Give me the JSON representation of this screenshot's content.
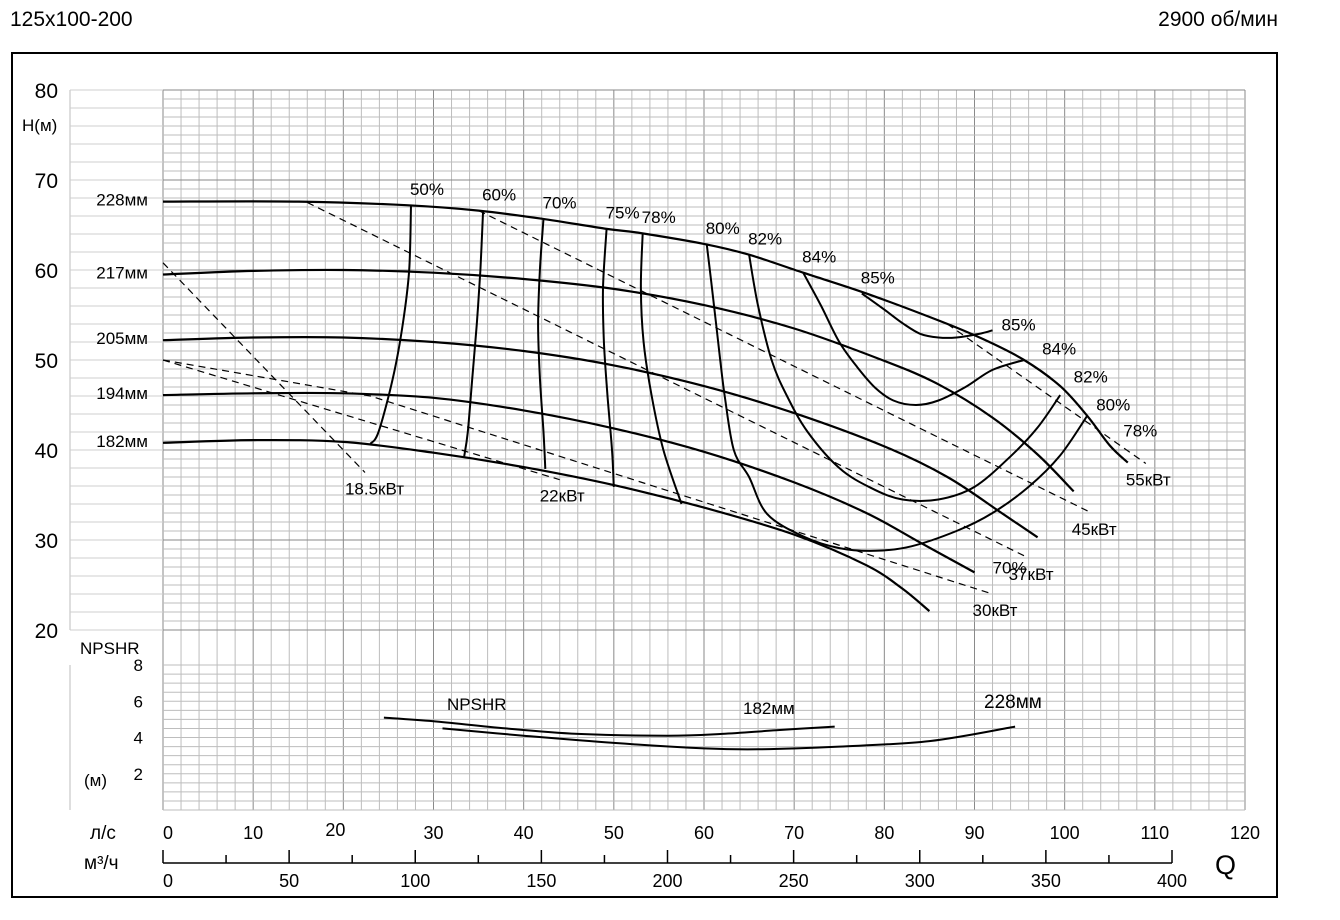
{
  "header": {
    "model": "125x100-200",
    "speed": "2900 об/мин"
  },
  "chart_data": {
    "type": "line",
    "title": "",
    "xlabel": "Q",
    "ylabel": "H(м)",
    "x_unit_ls": "л/с",
    "x_unit_m3h": "м³/ч",
    "xlim": [
      0,
      120
    ],
    "ylim": [
      20,
      80
    ],
    "grid": true,
    "x_ticks_ls": [
      0,
      10,
      20,
      30,
      40,
      50,
      60,
      70,
      80,
      90,
      100,
      110,
      120
    ],
    "x_ticks_m3h": [
      0,
      50,
      100,
      150,
      200,
      250,
      300,
      350,
      400
    ],
    "y_ticks": [
      20,
      30,
      40,
      50,
      60,
      70,
      80
    ],
    "head_curves": [
      {
        "name": "228мм",
        "points": [
          [
            0,
            67.6
          ],
          [
            15,
            67.6
          ],
          [
            27,
            67.2
          ],
          [
            35,
            66.6
          ],
          [
            42,
            65.7
          ],
          [
            49,
            64.6
          ],
          [
            53,
            64.1
          ],
          [
            60,
            62.9
          ],
          [
            65,
            61.7
          ],
          [
            71,
            59.7
          ],
          [
            78,
            57.4
          ],
          [
            86,
            54.4
          ],
          [
            91,
            52.3
          ],
          [
            95.5,
            50.0
          ],
          [
            99.5,
            47.1
          ],
          [
            102.5,
            43.8
          ],
          [
            105,
            40.5
          ],
          [
            107,
            38.6
          ]
        ]
      },
      {
        "name": "217мм",
        "points": [
          [
            0,
            59.5
          ],
          [
            10,
            59.9
          ],
          [
            20,
            60.0
          ],
          [
            30,
            59.7
          ],
          [
            40,
            59.0
          ],
          [
            50,
            57.9
          ],
          [
            60,
            56.1
          ],
          [
            70,
            53.5
          ],
          [
            80,
            49.9
          ],
          [
            86,
            47.3
          ],
          [
            92,
            43.6
          ],
          [
            97,
            39.5
          ],
          [
            101,
            35.4
          ]
        ]
      },
      {
        "name": "205мм",
        "points": [
          [
            0,
            52.2
          ],
          [
            10,
            52.5
          ],
          [
            20,
            52.5
          ],
          [
            30,
            52.0
          ],
          [
            40,
            51.0
          ],
          [
            50,
            49.4
          ],
          [
            60,
            47.1
          ],
          [
            70,
            44.1
          ],
          [
            80,
            40.4
          ],
          [
            87,
            37.0
          ],
          [
            93,
            33.0
          ],
          [
            97,
            30.3
          ]
        ]
      },
      {
        "name": "194мм",
        "points": [
          [
            0,
            46.1
          ],
          [
            10,
            46.3
          ],
          [
            20,
            46.3
          ],
          [
            30,
            45.8
          ],
          [
            40,
            44.4
          ],
          [
            50,
            42.4
          ],
          [
            60,
            39.8
          ],
          [
            70,
            36.4
          ],
          [
            78,
            33.0
          ],
          [
            84,
            29.7
          ],
          [
            90,
            26.4
          ]
        ]
      },
      {
        "name": "182мм",
        "points": [
          [
            0,
            40.8
          ],
          [
            10,
            41.1
          ],
          [
            20,
            40.9
          ],
          [
            30,
            39.7
          ],
          [
            40,
            38.1
          ],
          [
            50,
            36.1
          ],
          [
            60,
            33.6
          ],
          [
            70,
            30.6
          ],
          [
            78,
            27.2
          ],
          [
            82,
            24.6
          ],
          [
            85,
            22.1
          ]
        ]
      }
    ],
    "efficiency_lines": [
      {
        "label": "50%",
        "points": [
          [
            27.5,
            67.2
          ],
          [
            27.3,
            60.0
          ],
          [
            26.6,
            54.0
          ],
          [
            25.5,
            48.0
          ],
          [
            23.9,
            42.0
          ],
          [
            23.0,
            40.7
          ]
        ]
      },
      {
        "label": "60%",
        "points": [
          [
            35.5,
            66.6
          ],
          [
            35.2,
            60.0
          ],
          [
            34.8,
            54.0
          ],
          [
            34.3,
            48.0
          ],
          [
            33.8,
            42.0
          ],
          [
            33.4,
            39.3
          ]
        ]
      },
      {
        "label": "70%",
        "points": [
          [
            42.2,
            65.7
          ],
          [
            41.8,
            60.0
          ],
          [
            41.6,
            54.0
          ],
          [
            41.8,
            48.0
          ],
          [
            42.2,
            42.0
          ],
          [
            42.4,
            37.9
          ]
        ]
      },
      {
        "label": "75%",
        "points": [
          [
            49.2,
            64.6
          ],
          [
            48.8,
            58.0
          ],
          [
            48.9,
            52.0
          ],
          [
            49.3,
            46.0
          ],
          [
            49.8,
            40.0
          ],
          [
            50.0,
            35.9
          ]
        ]
      },
      {
        "label": "78%",
        "points": [
          [
            53.2,
            64.1
          ],
          [
            53.0,
            58.0
          ],
          [
            53.3,
            52.0
          ],
          [
            54.2,
            46.0
          ],
          [
            55.5,
            40.0
          ],
          [
            57.5,
            34.0
          ]
        ]
      },
      {
        "label": "80%",
        "points": [
          [
            60.3,
            62.9
          ],
          [
            61.0,
            57.0
          ],
          [
            61.8,
            50.0
          ],
          [
            62.3,
            46.0
          ],
          [
            63.3,
            40.0
          ],
          [
            65.0,
            37.0
          ],
          [
            67.0,
            32.9
          ],
          [
            71.0,
            30.4
          ],
          [
            75.0,
            29.1
          ],
          [
            79.0,
            28.8
          ],
          [
            83.0,
            29.3
          ],
          [
            88.0,
            31.0
          ],
          [
            92.0,
            33.0
          ],
          [
            96.0,
            35.9
          ],
          [
            99.5,
            39.4
          ],
          [
            102.5,
            43.8
          ]
        ]
      },
      {
        "label": "82%",
        "points": [
          [
            65.0,
            61.7
          ],
          [
            66.0,
            56.0
          ],
          [
            67.5,
            50.0
          ],
          [
            69.2,
            46.0
          ],
          [
            71.5,
            42.0
          ],
          [
            75.0,
            38.0
          ],
          [
            78.5,
            35.8
          ],
          [
            82.0,
            34.5
          ],
          [
            86.0,
            34.5
          ],
          [
            90.0,
            35.9
          ],
          [
            94.0,
            39.3
          ],
          [
            97.0,
            42.5
          ],
          [
            99.5,
            46.1
          ]
        ]
      },
      {
        "label": "84%",
        "points": [
          [
            71.0,
            59.7
          ],
          [
            73.0,
            56.0
          ],
          [
            75.0,
            52.0
          ],
          [
            77.0,
            49.2
          ],
          [
            79.0,
            46.9
          ],
          [
            81.0,
            45.5
          ],
          [
            83.5,
            45.0
          ],
          [
            86.0,
            45.5
          ],
          [
            89.0,
            47.0
          ],
          [
            92.0,
            48.9
          ],
          [
            95.5,
            50.0
          ]
        ]
      },
      {
        "label": "85%",
        "points": [
          [
            77.5,
            57.4
          ],
          [
            80.0,
            55.6
          ],
          [
            82.0,
            54.1
          ],
          [
            84.0,
            52.9
          ],
          [
            86.0,
            52.5
          ],
          [
            88.0,
            52.5
          ],
          [
            90.5,
            52.9
          ],
          [
            92.0,
            53.3
          ]
        ]
      }
    ],
    "power_lines": [
      {
        "label": "18.5кВт",
        "points": [
          [
            0,
            60.8
          ],
          [
            22.4,
            37.5
          ]
        ]
      },
      {
        "label": "22кВт",
        "points": [
          [
            0,
            50.0
          ],
          [
            44.0,
            36.7
          ]
        ]
      },
      {
        "label": "30кВт",
        "points": [
          [
            0,
            50.0
          ],
          [
            23.0,
            46.0
          ],
          [
            92.0,
            24.0
          ]
        ]
      },
      {
        "label": "37кВт",
        "points": [
          [
            16.0,
            67.5
          ],
          [
            96.0,
            28.0
          ]
        ]
      },
      {
        "label": "45кВт",
        "points": [
          [
            35.0,
            66.6
          ],
          [
            103.0,
            33.0
          ]
        ]
      },
      {
        "label": "55кВт",
        "points": [
          [
            87.0,
            54.0
          ],
          [
            109.0,
            38.5
          ]
        ]
      }
    ],
    "isolated_labels": [
      {
        "label": "85%",
        "x": 93.0,
        "y": 53.3
      },
      {
        "label": "84%",
        "x": 97.5,
        "y": 50.6
      },
      {
        "label": "82%",
        "x": 101.0,
        "y": 47.5
      },
      {
        "label": "80%",
        "x": 103.5,
        "y": 44.4
      },
      {
        "label": "78%",
        "x": 106.5,
        "y": 41.5
      },
      {
        "label": "70%",
        "x": 92.0,
        "y": 26.3
      }
    ],
    "diameter_labels": [
      "228мм",
      "217мм",
      "205мм",
      "194мм",
      "182мм"
    ],
    "npshr": {
      "label": "NPSHR",
      "unit": "(м)",
      "ylim": [
        0,
        8
      ],
      "y_ticks": [
        2,
        4,
        6,
        8
      ],
      "curves": [
        {
          "name": "182мм",
          "points": [
            [
              24.5,
              5.1
            ],
            [
              30,
              4.9
            ],
            [
              38,
              4.5
            ],
            [
              46,
              4.2
            ],
            [
              56,
              4.1
            ],
            [
              62,
              4.2
            ],
            [
              68,
              4.4
            ],
            [
              74.5,
              4.6
            ]
          ]
        },
        {
          "name": "228мм",
          "points": [
            [
              31,
              4.5
            ],
            [
              40,
              4.1
            ],
            [
              50,
              3.7
            ],
            [
              60,
              3.4
            ],
            [
              66,
              3.35
            ],
            [
              75,
              3.5
            ],
            [
              85,
              3.8
            ],
            [
              94.5,
              4.6
            ]
          ]
        }
      ]
    }
  }
}
